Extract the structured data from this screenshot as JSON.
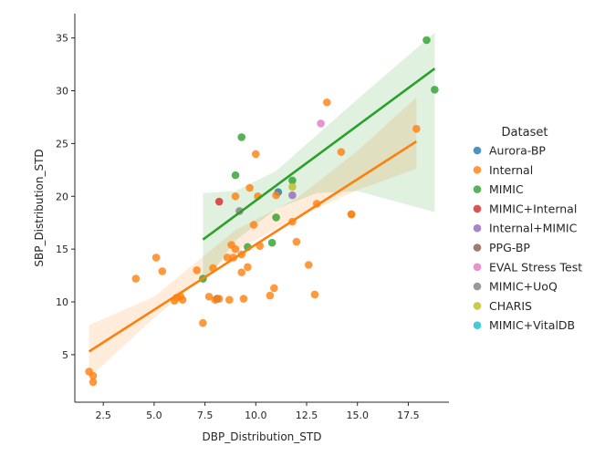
{
  "chart_data": {
    "type": "scatter",
    "xlabel": "DBP_Distribution_STD",
    "ylabel": "SBP_Distribution_STD",
    "xlim": [
      1.1,
      19.5
    ],
    "ylim": [
      0.5,
      37.3
    ],
    "x_ticks": [
      "2.5",
      "5.0",
      "7.5",
      "10.0",
      "12.5",
      "15.0",
      "17.5"
    ],
    "y_ticks": [
      "5",
      "10",
      "15",
      "20",
      "25",
      "30",
      "35"
    ],
    "legend": {
      "title": "Dataset",
      "placement": "right"
    },
    "series": [
      {
        "name": "Aurora-BP",
        "color": "#1f77b4",
        "points": [
          [
            8.1,
            10.3
          ],
          [
            11.1,
            20.4
          ]
        ]
      },
      {
        "name": "Internal",
        "color": "#ff7f0e",
        "points": [
          [
            1.8,
            3.4
          ],
          [
            2.0,
            3.0
          ],
          [
            2.0,
            2.4
          ],
          [
            4.1,
            12.2
          ],
          [
            5.1,
            14.2
          ],
          [
            5.4,
            12.9
          ],
          [
            6.0,
            10.1
          ],
          [
            6.1,
            10.4
          ],
          [
            6.3,
            10.5
          ],
          [
            6.4,
            10.2
          ],
          [
            7.1,
            13.0
          ],
          [
            7.4,
            8.0
          ],
          [
            7.7,
            10.5
          ],
          [
            7.9,
            13.2
          ],
          [
            8.0,
            10.2
          ],
          [
            8.2,
            10.3
          ],
          [
            8.6,
            14.2
          ],
          [
            8.7,
            10.2
          ],
          [
            8.8,
            15.4
          ],
          [
            8.9,
            14.2
          ],
          [
            9.0,
            15.0
          ],
          [
            9.0,
            20.0
          ],
          [
            9.3,
            14.5
          ],
          [
            9.3,
            12.8
          ],
          [
            9.4,
            10.3
          ],
          [
            9.6,
            13.3
          ],
          [
            9.7,
            20.8
          ],
          [
            9.9,
            17.3
          ],
          [
            10.0,
            24.0
          ],
          [
            10.1,
            20.0
          ],
          [
            10.2,
            15.3
          ],
          [
            10.7,
            10.6
          ],
          [
            10.9,
            11.3
          ],
          [
            11.0,
            20.1
          ],
          [
            11.8,
            17.6
          ],
          [
            12.0,
            15.7
          ],
          [
            12.6,
            13.5
          ],
          [
            12.9,
            10.7
          ],
          [
            13.0,
            19.3
          ],
          [
            13.5,
            28.9
          ],
          [
            14.2,
            24.2
          ],
          [
            14.7,
            18.3
          ],
          [
            14.7,
            18.3
          ],
          [
            17.9,
            26.4
          ]
        ]
      },
      {
        "name": "MIMIC",
        "color": "#2ca02c",
        "points": [
          [
            7.4,
            12.2
          ],
          [
            9.0,
            22.0
          ],
          [
            9.3,
            25.6
          ],
          [
            9.6,
            15.2
          ],
          [
            10.8,
            15.6
          ],
          [
            11.0,
            18.0
          ],
          [
            11.8,
            21.5
          ],
          [
            18.4,
            34.8
          ],
          [
            18.8,
            30.1
          ]
        ]
      },
      {
        "name": "MIMIC+Internal",
        "color": "#d62728",
        "points": [
          [
            8.2,
            19.5
          ]
        ]
      },
      {
        "name": "Internal+MIMIC",
        "color": "#9467bd",
        "points": [
          [
            11.8,
            20.1
          ]
        ]
      },
      {
        "name": "PPG-BP",
        "color": "#8c564b",
        "points": []
      },
      {
        "name": "EVAL Stress Test",
        "color": "#e377c2",
        "points": [
          [
            13.2,
            26.9
          ]
        ]
      },
      {
        "name": "MIMIC+UoQ",
        "color": "#7f7f7f",
        "points": [
          [
            9.2,
            18.6
          ]
        ]
      },
      {
        "name": "CHARIS",
        "color": "#bcbd22",
        "points": [
          [
            11.8,
            20.9
          ]
        ]
      },
      {
        "name": "MIMIC+VitalDB",
        "color": "#17becf",
        "points": []
      }
    ],
    "regression": [
      {
        "series": "Internal",
        "color": "#ff7f0e",
        "line": [
          [
            1.8,
            5.3
          ],
          [
            17.9,
            25.2
          ]
        ],
        "ci_lower": [
          [
            1.8,
            2.8
          ],
          [
            5.0,
            8.5
          ],
          [
            9.0,
            14.8
          ],
          [
            12.0,
            18.0
          ],
          [
            15.0,
            20.6
          ],
          [
            17.9,
            22.6
          ]
        ],
        "ci_upper": [
          [
            1.8,
            7.8
          ],
          [
            5.0,
            10.5
          ],
          [
            9.0,
            16.8
          ],
          [
            12.0,
            19.8
          ],
          [
            15.0,
            24.3
          ],
          [
            17.9,
            29.4
          ]
        ]
      },
      {
        "series": "MIMIC",
        "color": "#2ca02c",
        "line": [
          [
            7.4,
            15.9
          ],
          [
            18.8,
            32.1
          ]
        ],
        "ci_lower": [
          [
            7.4,
            11.6
          ],
          [
            9.0,
            15.8
          ],
          [
            11.0,
            18.8
          ],
          [
            13.0,
            20.3
          ],
          [
            15.0,
            20.5
          ],
          [
            18.8,
            18.5
          ]
        ],
        "ci_upper": [
          [
            7.4,
            20.3
          ],
          [
            9.0,
            20.5
          ],
          [
            11.0,
            22.4
          ],
          [
            13.0,
            25.8
          ],
          [
            15.0,
            29.2
          ],
          [
            18.8,
            35.5
          ]
        ]
      }
    ]
  }
}
